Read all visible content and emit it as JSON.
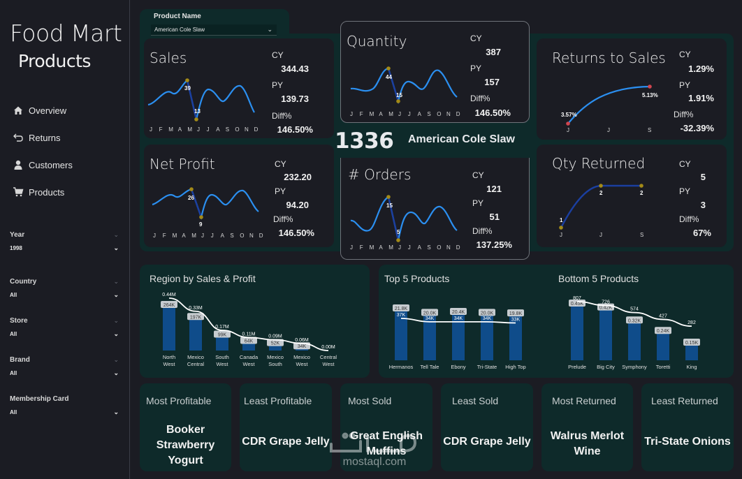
{
  "brand": {
    "line1": "Food Mart",
    "line2": "Products"
  },
  "nav": [
    {
      "label": "Overview",
      "icon": "home-icon"
    },
    {
      "label": "Returns",
      "icon": "return-arrow-icon"
    },
    {
      "label": "Customers",
      "icon": "person-icon"
    },
    {
      "label": "Products",
      "icon": "cart-icon"
    }
  ],
  "filters": [
    {
      "label": "Year",
      "value": "1998"
    },
    {
      "label": "Country",
      "value": "All"
    },
    {
      "label": "Store",
      "value": "All"
    },
    {
      "label": "Brand",
      "value": "All"
    },
    {
      "label": "Membership Card",
      "value": "All"
    }
  ],
  "product_filter": {
    "label": "Product Name",
    "value": "American Cole Slaw"
  },
  "months": [
    "J",
    "F",
    "M",
    "A",
    "M",
    "J",
    "J",
    "A",
    "S",
    "O",
    "N",
    "D"
  ],
  "kpis": {
    "sales": {
      "title": "Sales",
      "cy_label": "CY",
      "cy": "344.43",
      "py_label": "PY",
      "py": "139.73",
      "diff_label": "Diff%",
      "diff": "146.50%",
      "max_label": "39",
      "min_label": "13"
    },
    "net_profit": {
      "title": "Net Profit",
      "cy_label": "CY",
      "cy": "232.20",
      "py_label": "PY",
      "py": "94.20",
      "diff_label": "Diff%",
      "diff": "146.50%",
      "max_label": "26",
      "min_label": "9"
    },
    "quantity": {
      "title": "Quantity",
      "cy_label": "CY",
      "cy": "387",
      "py_label": "PY",
      "py": "157",
      "diff_label": "Diff%",
      "diff": "146.50%",
      "max_label": "44",
      "min_label": "15"
    },
    "orders": {
      "title": "# Orders",
      "cy_label": "CY",
      "cy": "121",
      "py_label": "PY",
      "py": "51",
      "diff_label": "Diff%",
      "diff": "137.25%",
      "max_label": "15",
      "min_label": "5"
    },
    "returns_to_sales": {
      "title": "Returns to Sales",
      "cy_label": "CY",
      "cy": "1.29%",
      "py_label": "PY",
      "py": "1.91%",
      "diff_label": "Diff%",
      "diff": "-32.39%",
      "start_label": "3.57%",
      "end_label": "5.13%",
      "axis": [
        "J",
        "J",
        "S"
      ]
    },
    "qty_returned": {
      "title": "Qty Returned",
      "cy_label": "CY",
      "cy": "5",
      "py_label": "PY",
      "py": "3",
      "diff_label": "Diff%",
      "diff": "67%",
      "points": [
        "1",
        "2",
        "2"
      ],
      "axis": [
        "J",
        "J",
        "S"
      ]
    }
  },
  "center": {
    "total": "1336",
    "product": "American Cole Slaw"
  },
  "chart_data": [
    {
      "type": "bar",
      "title": "Region by Sales & Profit",
      "categories": [
        "North West",
        "Mexico Central",
        "South West",
        "Canada West",
        "Mexico South",
        "Mexico West",
        "Central West"
      ],
      "series": [
        {
          "name": "Sales",
          "values": [
            0.44,
            0.33,
            0.17,
            0.11,
            0.09,
            0.06,
            0.0
          ],
          "labels": [
            "0.44M",
            "0.33M",
            "0.17M",
            "0.11M",
            "0.09M",
            "0.06M",
            "0.00M"
          ]
        },
        {
          "name": "Profit",
          "values": [
            264,
            197,
            99,
            64,
            52,
            34,
            0
          ],
          "labels": [
            "264K",
            "197K",
            "99K",
            "64K",
            "52K",
            "34K",
            ""
          ]
        }
      ]
    },
    {
      "type": "bar",
      "title": "Top 5 Products",
      "categories": [
        "Hermanos",
        "Tell Tale",
        "Ebony",
        "Tri-State",
        "High Top"
      ],
      "series": [
        {
          "name": "Quantity",
          "values": [
            37,
            34,
            34,
            34,
            33
          ],
          "labels": [
            "37K",
            "34K",
            "34K",
            "34K",
            "33K"
          ]
        },
        {
          "name": "Profit",
          "values": [
            21.8,
            20.0,
            20.4,
            20.0,
            19.8
          ],
          "labels": [
            "21.8K",
            "20.0K",
            "20.4K",
            "20.0K",
            "19.8K"
          ]
        }
      ]
    },
    {
      "type": "bar",
      "title": "Bottom 5 Products",
      "categories": [
        "Prelude",
        "Big City",
        "Symphony",
        "Toretti",
        "King"
      ],
      "series": [
        {
          "name": "Quantity",
          "values": [
            807,
            726,
            574,
            427,
            282
          ],
          "labels": [
            "807",
            "726",
            "574",
            "427",
            "282"
          ]
        },
        {
          "name": "Profit",
          "values": [
            0.45,
            0.42,
            0.32,
            0.24,
            0.15
          ],
          "labels": [
            "0.45K",
            "0.42K",
            "0.32K",
            "0.24K",
            "0.15K"
          ]
        }
      ]
    }
  ],
  "tiles": [
    {
      "label": "Most Profitable",
      "value": "Booker Strawberry Yogurt"
    },
    {
      "label": "Least Profitable",
      "value": "CDR Grape Jelly"
    },
    {
      "label": "Most Sold",
      "value": "Great English Muffins"
    },
    {
      "label": "Least Sold",
      "value": "CDR Grape Jelly"
    },
    {
      "label": "Most Returned",
      "value": "Walrus Merlot Wine"
    },
    {
      "label": "Least Returned",
      "value": "Tri-State Onions"
    }
  ],
  "watermark": {
    "text": "mostaql.com"
  },
  "colors": {
    "panel": "#0e2a2a",
    "card": "#1b1c23",
    "bar": "#0f4c8a",
    "line": "#2b8ff0",
    "marker": "#a38a17"
  }
}
